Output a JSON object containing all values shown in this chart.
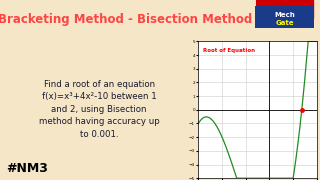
{
  "title": "Bracketing Method - Bisection Method",
  "title_color": "#ff4444",
  "title_bg": "#228B22",
  "bg_color": "#f5e6c8",
  "text_box_bg": "#cce0f0",
  "text_box_text": "Find a root of an equation\nf(x)=x³+4x²-10 between 1\nand 2, using Bisection\nmethod having accuracy up\nto 0.001.",
  "hashtag": "#NM3",
  "hashtag_color": "#000000",
  "plot_label": "Root of Equation",
  "plot_label_color": "#ff0000",
  "root_x": 1.3652,
  "root_y": 0.0,
  "curve_color": "#228B22",
  "xlim": [
    -3,
    2
  ],
  "ylim": [
    -5,
    5
  ],
  "logo_bg": "#f5e6c8",
  "logo_text1": "Mech",
  "logo_text2": "Gate",
  "logo_color1": "#ffffff",
  "logo_color2": "#ffff00"
}
